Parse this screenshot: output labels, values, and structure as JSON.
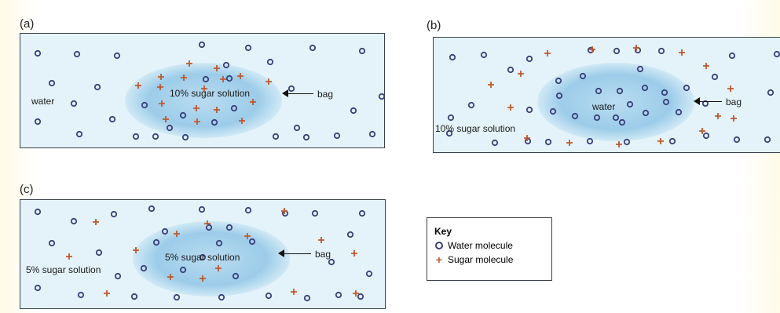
{
  "panels": [
    {
      "id": "a",
      "label": "(a)",
      "bag_text": "10% sugar solution",
      "outside_text": "water",
      "arrow_text": "bag"
    },
    {
      "id": "b",
      "label": "(b)",
      "bag_text": "water",
      "outside_text": "10% sugar solution",
      "arrow_text": "bag"
    },
    {
      "id": "c",
      "label": "(c)",
      "bag_text": "5% sugar solution",
      "outside_text": "5% sugar solution",
      "arrow_text": "bag"
    }
  ],
  "key": {
    "title": "Key",
    "items": [
      {
        "symbol": "circle",
        "label": "Water molecule"
      },
      {
        "symbol": "plus",
        "label": "Sugar molecule"
      }
    ]
  },
  "colors": {
    "water_molecule": "#3a3f7a",
    "sugar_molecule": "#c1582b",
    "bag_fill": "#8fc5e8",
    "background": "#e4f3f9"
  }
}
